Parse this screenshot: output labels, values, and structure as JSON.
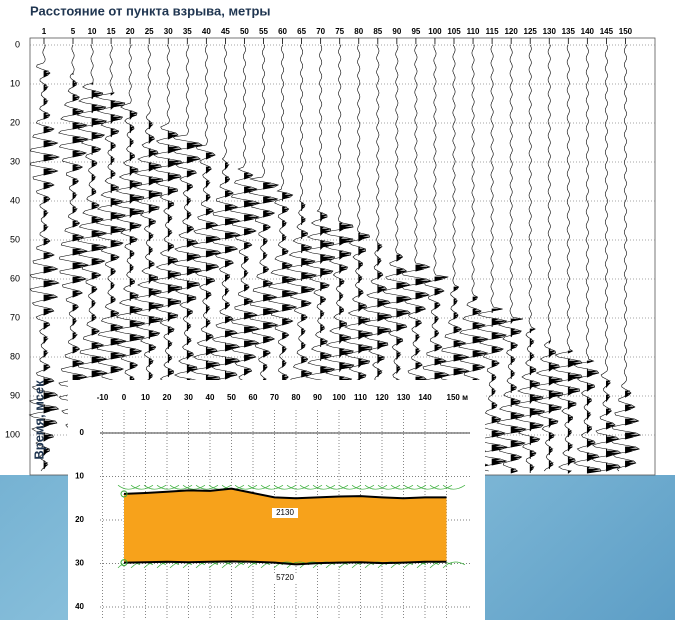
{
  "seismogram": {
    "title": "Расстояние от пункта взрыва, метры",
    "y_label": "Время, мсек",
    "x_ticks": [
      1,
      5,
      10,
      15,
      20,
      25,
      30,
      35,
      40,
      45,
      50,
      55,
      60,
      65,
      70,
      75,
      80,
      85,
      90,
      95,
      100,
      105,
      110,
      115,
      120,
      125,
      130,
      135,
      140,
      145,
      150
    ],
    "y_ticks": [
      0,
      10,
      20,
      30,
      40,
      50,
      60,
      70,
      80,
      90,
      100
    ]
  },
  "inset": {
    "x_ticks": [
      -10,
      0,
      10,
      20,
      30,
      40,
      50,
      60,
      70,
      80,
      90,
      100,
      110,
      120,
      130,
      140,
      {
        "value": 150,
        "label": "150 м"
      }
    ],
    "y_ticks": [
      0,
      10,
      20,
      30,
      40
    ],
    "layer": {
      "x": [
        0,
        10,
        20,
        30,
        40,
        50,
        60,
        70,
        80,
        90,
        100,
        110,
        120,
        130,
        140,
        150
      ],
      "top": [
        14,
        13.8,
        13.5,
        13.2,
        13.3,
        12.8,
        13.8,
        14.8,
        15,
        14.8,
        14.6,
        14.5,
        14.8,
        15,
        14.8,
        14.8
      ],
      "bottom": [
        29.8,
        29.7,
        29.6,
        29.7,
        29.6,
        29.5,
        29.6,
        29.8,
        30.2,
        29.9,
        29.8,
        29.7,
        29.9,
        29.8,
        29.6,
        29.6
      ]
    },
    "velocity_labels": [
      2130,
      5720
    ]
  }
}
